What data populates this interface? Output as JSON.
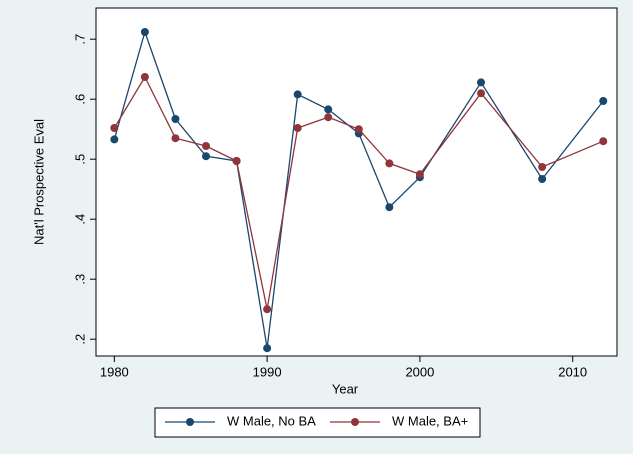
{
  "chart_data": {
    "type": "line",
    "x_label": "Year",
    "y_label": "Nat'l Prospective Eval",
    "x": [
      1980,
      1982,
      1984,
      1986,
      1988,
      1990,
      1992,
      1994,
      1996,
      1998,
      2000,
      2004,
      2008,
      2012
    ],
    "series": [
      {
        "name": "W Male, No BA",
        "color": "#1a476f",
        "values": [
          0.533,
          0.712,
          0.567,
          0.505,
          0.497,
          0.185,
          0.608,
          0.583,
          0.543,
          0.42,
          0.47,
          0.628,
          0.467,
          0.597
        ]
      },
      {
        "name": "W Male, BA+",
        "color": "#90353b",
        "values": [
          0.552,
          0.637,
          0.535,
          0.522,
          0.497,
          0.25,
          0.552,
          0.57,
          0.55,
          0.493,
          0.475,
          0.61,
          0.487,
          0.53
        ]
      }
    ],
    "xlim": [
      1978.8,
      2012.9
    ],
    "xticks": [
      1980,
      1990,
      2000,
      2010
    ],
    "ylim": [
      0.172,
      0.752
    ],
    "yticks": [
      {
        "value": 0.2,
        "label": ".2"
      },
      {
        "value": 0.3,
        "label": ".3"
      },
      {
        "value": 0.4,
        "label": ".4"
      },
      {
        "value": 0.5,
        "label": ".5"
      },
      {
        "value": 0.6,
        "label": ".6"
      },
      {
        "value": 0.7,
        "label": ".7"
      }
    ],
    "legend": "bottom"
  }
}
